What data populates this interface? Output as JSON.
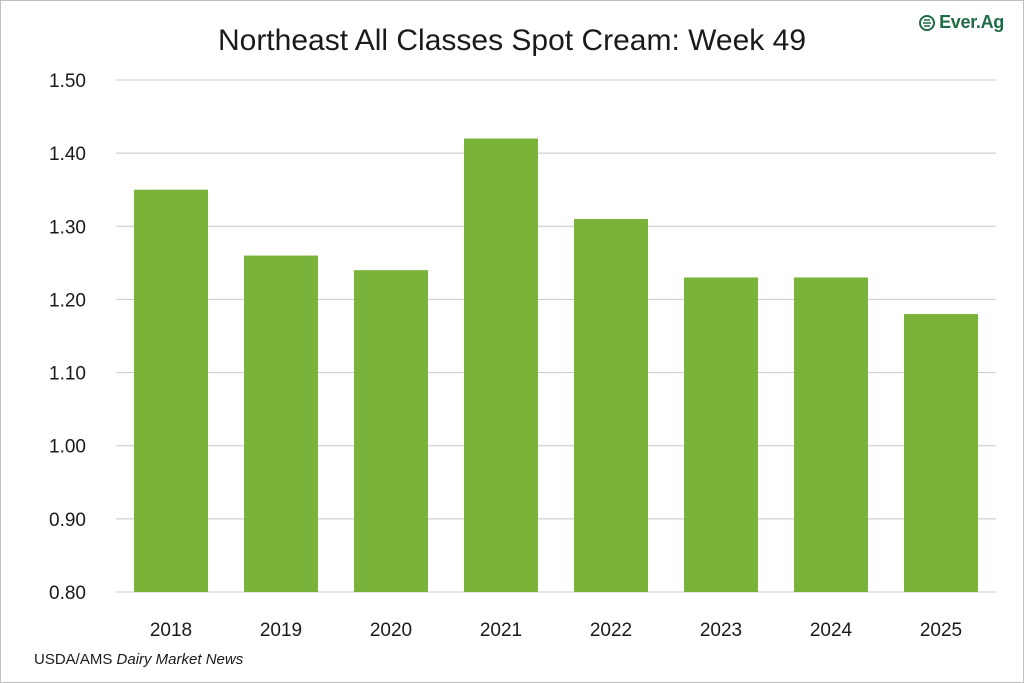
{
  "chart_data": {
    "type": "bar",
    "title": "Northeast All Classes Spot Cream: Week 49",
    "categories": [
      "2018",
      "2019",
      "2020",
      "2021",
      "2022",
      "2023",
      "2024",
      "2025"
    ],
    "values": [
      1.35,
      1.26,
      1.24,
      1.42,
      1.31,
      1.23,
      1.23,
      1.18
    ],
    "xlabel": "",
    "ylabel": "",
    "ylim": [
      0.8,
      1.5
    ],
    "yticks": [
      "0.80",
      "0.90",
      "1.00",
      "1.10",
      "1.20",
      "1.30",
      "1.40",
      "1.50"
    ],
    "grid": true,
    "bar_color": "#7ab339",
    "grid_color": "#c8c8c8"
  },
  "logo": {
    "text": "Ever.Ag",
    "icon": "ever-ag-logo-icon",
    "color": "#1f6b45"
  },
  "source": {
    "prefix": "USDA/AMS ",
    "italic": "Dairy Market News"
  }
}
